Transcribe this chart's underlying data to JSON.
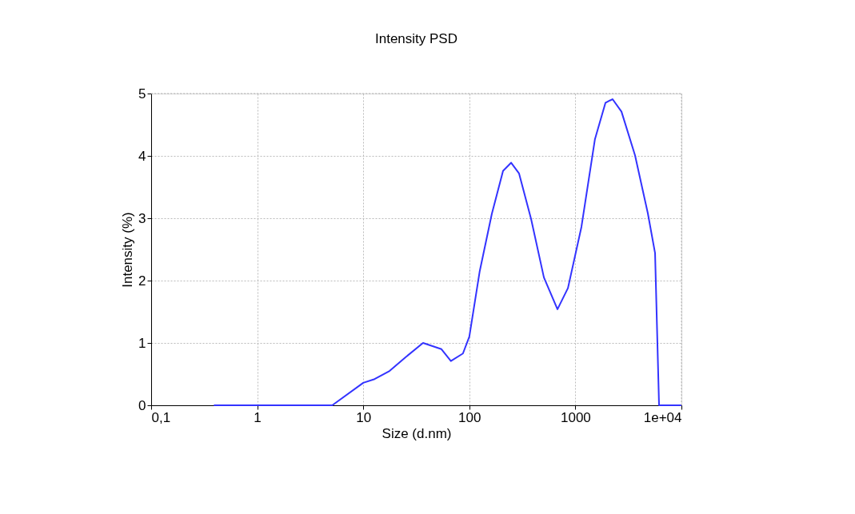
{
  "chart_data": {
    "type": "line",
    "title": "Intensity PSD",
    "xlabel": "Size (d.nm)",
    "ylabel": "Intensity (%)",
    "log": "x",
    "grid": true,
    "marker": "none",
    "line_style": "solid",
    "xlim": [
      0.1,
      10000
    ],
    "xticks": [
      {
        "value": 0.1,
        "label": "0,1"
      },
      1,
      10,
      100,
      1000,
      {
        "value": 10000,
        "label": "1e+04"
      }
    ],
    "ylim": [
      0,
      5
    ],
    "yticks": [
      0,
      1,
      2,
      3,
      4,
      5
    ],
    "x": [
      0.39,
      5.1,
      10,
      12.8,
      17.7,
      25,
      36.6,
      54.6,
      67,
      87,
      100,
      125,
      163,
      208,
      248,
      294,
      382,
      505,
      678,
      851,
      1140,
      1530,
      1920,
      2240,
      2720,
      3650,
      4820,
      5640,
      6150,
      10000
    ],
    "series": [
      {
        "color": "#3333ff",
        "values": [
          0,
          0,
          0.36,
          0.42,
          0.55,
          0.77,
          1.0,
          0.9,
          0.71,
          0.83,
          1.1,
          2.14,
          3.07,
          3.76,
          3.89,
          3.72,
          2.99,
          2.05,
          1.54,
          1.88,
          2.86,
          4.27,
          4.85,
          4.91,
          4.71,
          4.01,
          3.08,
          2.44,
          0,
          0
        ]
      }
    ]
  }
}
